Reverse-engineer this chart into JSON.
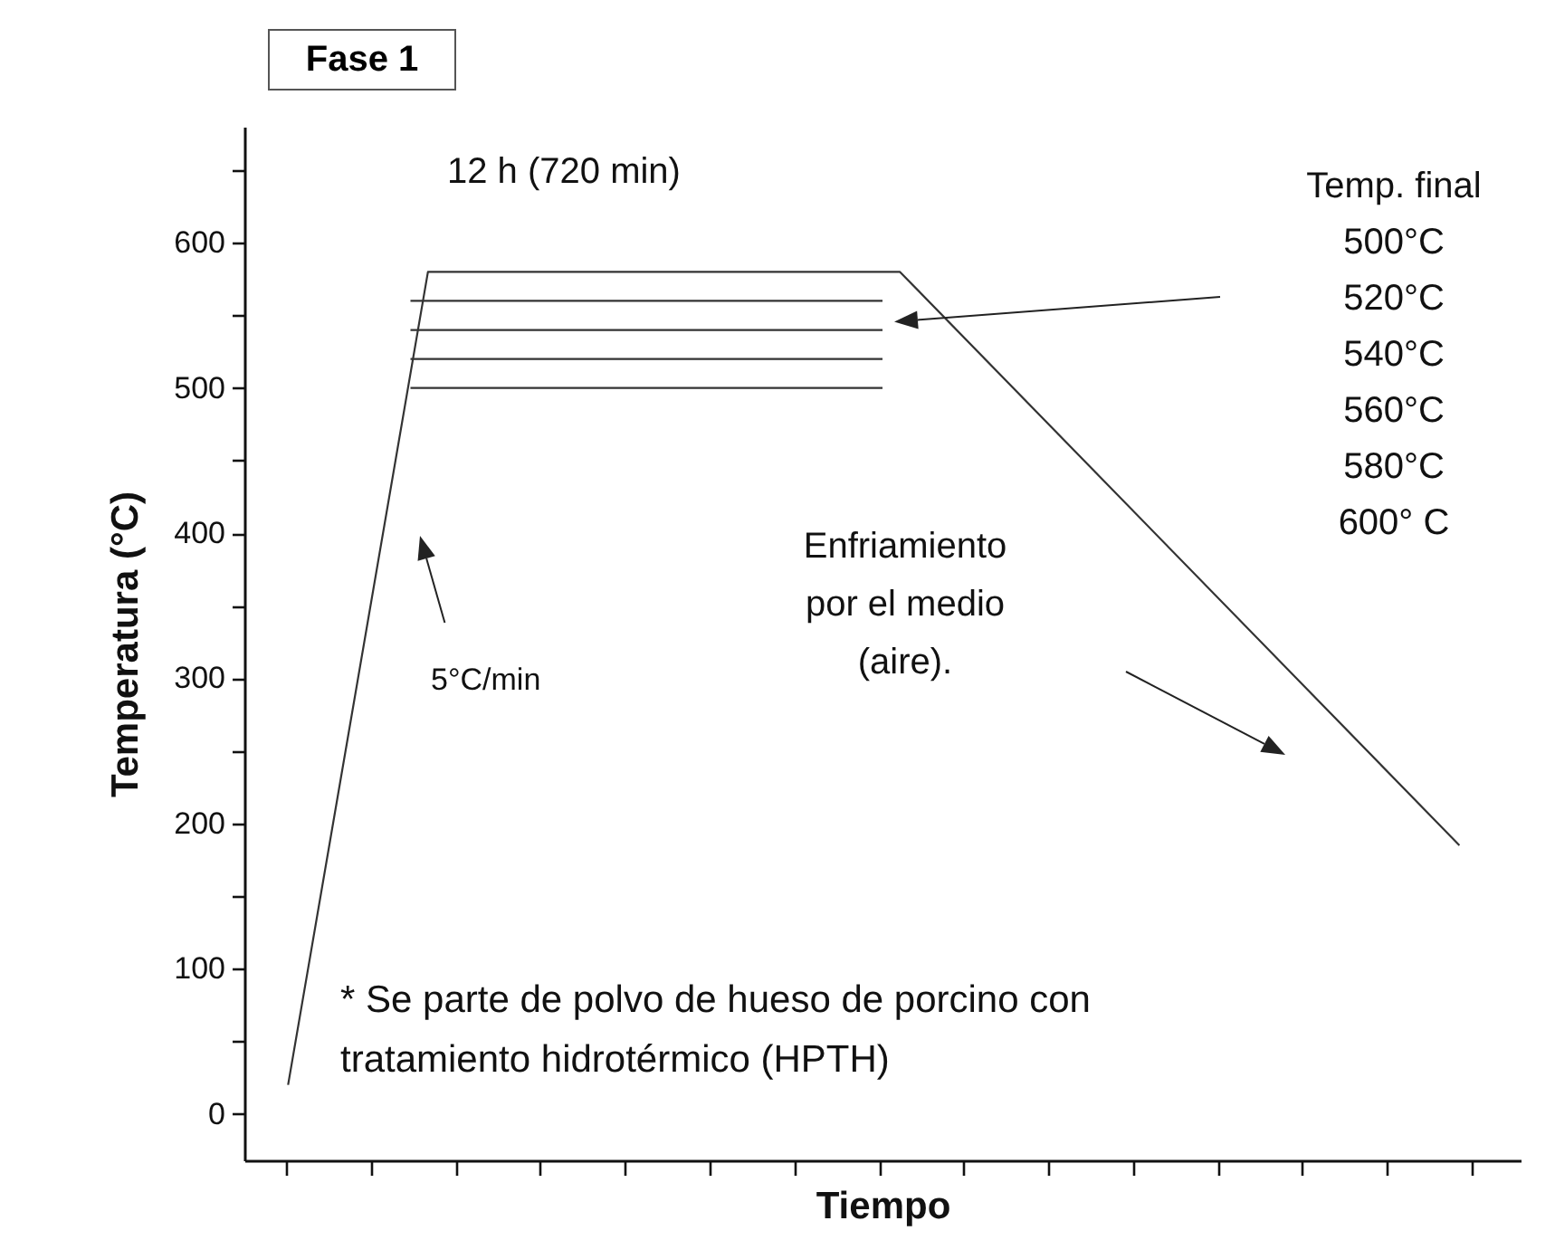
{
  "chart_data": {
    "type": "line",
    "title": "Fase 1",
    "xlabel": "Tiempo",
    "ylabel": "Temperatura (°C)",
    "annotations": [
      "12 h (720 min)",
      "Temp. final\n500°C\n520°C\n540°C\n560°C\n580°C\n600° C",
      "Enfriamiento\npor el medio\n(aire).",
      "5°C/min",
      "* Se parte de polvo de hueso de porcino con\ntratamiento hidrotérmico (HPTH)"
    ],
    "categories": [
      null,
      null,
      null,
      null,
      null,
      null,
      null,
      null,
      null,
      null,
      null,
      null,
      null,
      null,
      null,
      null,
      null,
      null,
      null,
      null,
      null,
      null,
      null,
      null,
      null,
      null,
      null,
      null,
      null,
      null,
      null,
      null,
      null,
      null,
      null,
      null,
      null,
      null,
      null,
      null,
      null,
      null,
      null,
      null,
      null,
      null,
      null,
      null,
      null,
      null,
      null,
      null,
      null,
      null,
      null,
      null,
      null,
      null,
      null,
      null,
      null,
      null,
      null,
      null,
      null,
      null,
      null,
      null,
      null,
      null,
      null,
      null,
      null
    ],
    "series": [
      {
        "color": "#333333",
        "values": [
          null,
          null,
          20,
          null,
          null,
          null,
          null,
          null,
          null,
          null,
          580,
          null,
          null,
          null,
          null,
          null,
          null,
          null,
          null,
          null,
          null,
          null,
          null,
          null,
          null,
          null,
          null,
          null,
          null,
          null,
          null,
          null,
          null,
          null,
          null,
          null,
          null,
          580,
          null,
          null,
          null,
          null,
          null,
          null,
          null,
          null,
          null,
          null,
          null,
          null,
          null,
          null,
          null,
          null,
          null,
          null,
          null,
          null,
          null,
          null,
          null,
          null,
          null,
          null,
          null,
          null,
          null,
          null,
          null,
          185,
          null,
          null,
          null
        ]
      },
      {
        "color": "#333333",
        "values": [
          null,
          null,
          null,
          null,
          null,
          null,
          null,
          null,
          null,
          560,
          null,
          null,
          null,
          null,
          null,
          null,
          null,
          null,
          null,
          null,
          null,
          null,
          null,
          null,
          null,
          null,
          null,
          null,
          null,
          null,
          null,
          null,
          null,
          null,
          null,
          null,
          560,
          null,
          null,
          null,
          null,
          null,
          null,
          null,
          null,
          null,
          null,
          null,
          null,
          null,
          null,
          null,
          null,
          null,
          null,
          null,
          null,
          null,
          null,
          null,
          null,
          null,
          null,
          null,
          null,
          null,
          null,
          null,
          null,
          null,
          null,
          null,
          null
        ]
      },
      {
        "color": "#333333",
        "values": [
          null,
          null,
          null,
          null,
          null,
          null,
          null,
          null,
          null,
          540,
          null,
          null,
          null,
          null,
          null,
          null,
          null,
          null,
          null,
          null,
          null,
          null,
          null,
          null,
          null,
          null,
          null,
          null,
          null,
          null,
          null,
          null,
          null,
          null,
          null,
          null,
          540,
          null,
          null,
          null,
          null,
          null,
          null,
          null,
          null,
          null,
          null,
          null,
          null,
          null,
          null,
          null,
          null,
          null,
          null,
          null,
          null,
          null,
          null,
          null,
          null,
          null,
          null,
          null,
          null,
          null,
          null,
          null,
          null,
          null,
          null,
          null,
          null
        ]
      },
      {
        "color": "#333333",
        "values": [
          null,
          null,
          null,
          null,
          null,
          null,
          null,
          null,
          null,
          520,
          null,
          null,
          null,
          null,
          null,
          null,
          null,
          null,
          null,
          null,
          null,
          null,
          null,
          null,
          null,
          null,
          null,
          null,
          null,
          null,
          null,
          null,
          null,
          null,
          null,
          null,
          520,
          null,
          null,
          null,
          null,
          null,
          null,
          null,
          null,
          null,
          null,
          null,
          null,
          null,
          null,
          null,
          null,
          null,
          null,
          null,
          null,
          null,
          null,
          null,
          null,
          null,
          null,
          null,
          null,
          null,
          null,
          null,
          null,
          null,
          null,
          null,
          null
        ]
      },
      {
        "color": "#333333",
        "values": [
          null,
          null,
          null,
          null,
          null,
          null,
          null,
          null,
          null,
          500,
          null,
          null,
          null,
          null,
          null,
          null,
          null,
          null,
          null,
          null,
          null,
          null,
          null,
          null,
          null,
          null,
          null,
          null,
          null,
          null,
          null,
          null,
          null,
          null,
          null,
          null,
          500,
          null,
          null,
          null,
          null,
          null,
          null,
          null,
          null,
          null,
          null,
          null,
          null,
          null,
          null,
          null,
          null,
          null,
          null,
          null,
          null,
          null,
          null,
          null,
          null,
          null,
          null,
          null,
          null,
          null,
          null,
          null,
          null,
          null,
          null,
          null,
          null
        ]
      }
    ],
    "ylim": [
      -32,
      680
    ],
    "yticks": [
      0,
      {
        "value": 50,
        "label": null
      },
      100,
      {
        "value": 150,
        "label": null
      },
      200,
      {
        "value": 250,
        "label": null
      },
      300,
      {
        "value": 350,
        "label": null
      },
      400,
      {
        "value": 450,
        "label": null
      },
      500,
      {
        "value": 550,
        "label": null
      },
      600,
      {
        "value": 650,
        "label": null
      }
    ],
    "tick_labels": "y",
    "grid": false,
    "legend": false,
    "marker": "none",
    "line_style": "solid"
  }
}
